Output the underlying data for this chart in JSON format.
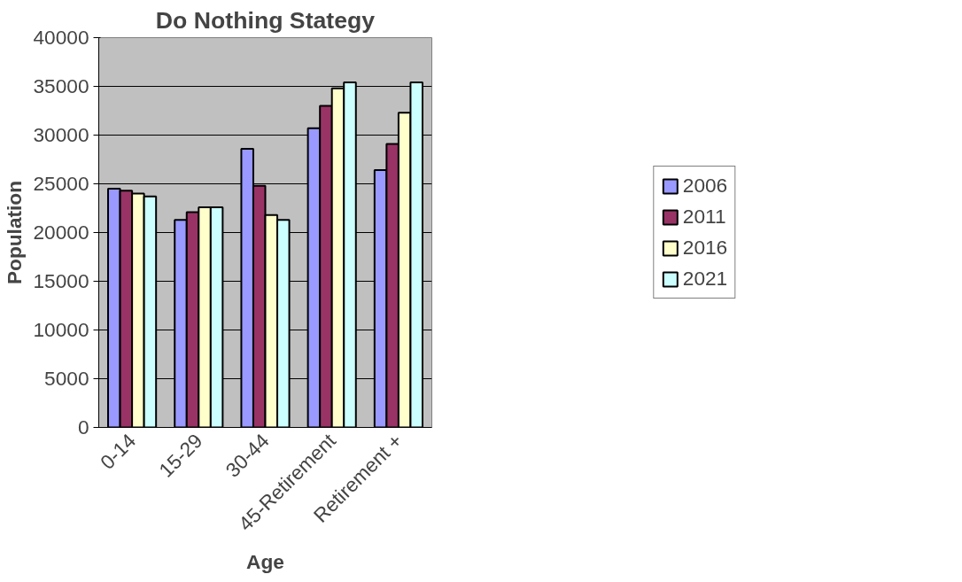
{
  "chart_data": {
    "type": "bar",
    "title": "Do Nothing Stategy",
    "xlabel": "Age",
    "ylabel": "Population",
    "categories": [
      "0-14",
      "15-29",
      "30-44",
      "45-Retirement",
      "Retirement +"
    ],
    "series": [
      {
        "name": "2006",
        "color": "#9999ff",
        "values": [
          24500,
          21300,
          28600,
          30700,
          26400
        ]
      },
      {
        "name": "2011",
        "color": "#993366",
        "values": [
          24300,
          22100,
          24800,
          33000,
          29100
        ]
      },
      {
        "name": "2016",
        "color": "#ffffcc",
        "values": [
          24000,
          22600,
          21800,
          34800,
          32300
        ]
      },
      {
        "name": "2021",
        "color": "#ccffff",
        "values": [
          23700,
          22600,
          21300,
          35400,
          35400
        ]
      }
    ],
    "ylim": [
      0,
      40000
    ],
    "yticks": [
      0,
      5000,
      10000,
      15000,
      20000,
      25000,
      30000,
      35000,
      40000
    ],
    "grid": "y",
    "legend": "right"
  }
}
